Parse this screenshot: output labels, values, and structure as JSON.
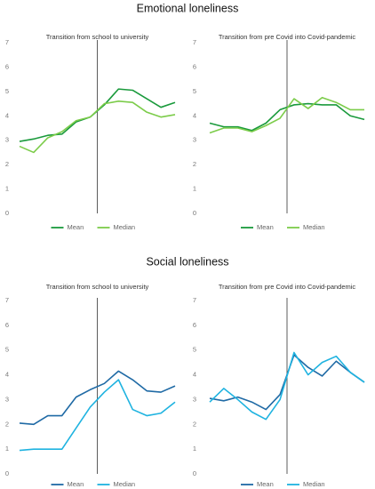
{
  "headings": [
    "Emotional loneliness",
    "Social loneliness"
  ],
  "chart_data": [
    {
      "type": "line",
      "title": "Transition from school to university",
      "categories": [
        null,
        null,
        null,
        null,
        null,
        null,
        null,
        null,
        null,
        null,
        null,
        null
      ],
      "ylim": [
        0,
        7
      ],
      "yticks": [
        0,
        1,
        2,
        3,
        4,
        5,
        6,
        7
      ],
      "grid": false,
      "legend": "bottom",
      "series": [
        {
          "name": "Mean",
          "color": "#1a9a3c",
          "values": [
            2.95,
            3.05,
            3.2,
            3.25,
            3.75,
            3.95,
            4.45,
            5.1,
            5.05,
            4.7,
            4.35,
            4.55
          ]
        },
        {
          "name": "Median",
          "color": "#7ccc4a",
          "values": [
            2.75,
            2.5,
            3.1,
            3.35,
            3.8,
            3.95,
            4.5,
            4.6,
            4.55,
            4.15,
            3.95,
            4.05
          ]
        }
      ]
    },
    {
      "type": "line",
      "title": "Transition from pre Covid into Covid-pandemic",
      "categories": [
        null,
        null,
        null,
        null,
        null,
        null,
        null,
        null,
        null,
        null,
        null,
        null
      ],
      "ylim": [
        0,
        7
      ],
      "yticks": [
        0,
        1,
        2,
        3,
        4,
        5,
        6,
        7
      ],
      "grid": false,
      "legend": "bottom",
      "series": [
        {
          "name": "Mean",
          "color": "#1a9a3c",
          "values": [
            3.7,
            3.55,
            3.55,
            3.4,
            3.7,
            4.25,
            4.45,
            4.5,
            4.45,
            4.45,
            4.0,
            3.85
          ]
        },
        {
          "name": "Median",
          "color": "#7ccc4a",
          "values": [
            3.3,
            3.5,
            3.5,
            3.35,
            3.6,
            3.9,
            4.7,
            4.3,
            4.75,
            4.55,
            4.25,
            4.25
          ]
        }
      ]
    },
    {
      "type": "line",
      "title": "Transition from school to university",
      "categories": [
        null,
        null,
        null,
        null,
        null,
        null,
        null,
        null,
        null,
        null,
        null,
        null
      ],
      "ylim": [
        0,
        7
      ],
      "yticks": [
        0,
        1,
        2,
        3,
        4,
        5,
        6,
        7
      ],
      "grid": false,
      "legend": "bottom",
      "series": [
        {
          "name": "Mean",
          "color": "#1f6aa5",
          "values": [
            2.05,
            2.0,
            2.35,
            2.35,
            3.1,
            3.4,
            3.65,
            4.15,
            3.8,
            3.35,
            3.3,
            3.55
          ]
        },
        {
          "name": "Median",
          "color": "#1fb3e0",
          "values": [
            0.95,
            1.0,
            1.0,
            1.0,
            1.85,
            2.7,
            3.3,
            3.8,
            2.6,
            2.35,
            2.45,
            2.9
          ]
        }
      ]
    },
    {
      "type": "line",
      "title": "Transition from pre Covid into Covid-pandemic",
      "categories": [
        null,
        null,
        null,
        null,
        null,
        null,
        null,
        null,
        null,
        null,
        null,
        null
      ],
      "ylim": [
        0,
        7
      ],
      "yticks": [
        0,
        1,
        2,
        3,
        4,
        5,
        6,
        7
      ],
      "grid": false,
      "legend": "bottom",
      "series": [
        {
          "name": "Mean",
          "color": "#1f6aa5",
          "values": [
            3.05,
            2.95,
            3.1,
            2.9,
            2.6,
            3.2,
            4.8,
            4.3,
            3.95,
            4.55,
            4.1,
            3.7
          ]
        },
        {
          "name": "Median",
          "color": "#1fb3e0",
          "values": [
            2.9,
            3.45,
            3.0,
            2.5,
            2.2,
            3.0,
            4.9,
            4.0,
            4.5,
            4.75,
            4.1,
            3.7
          ]
        }
      ]
    }
  ]
}
